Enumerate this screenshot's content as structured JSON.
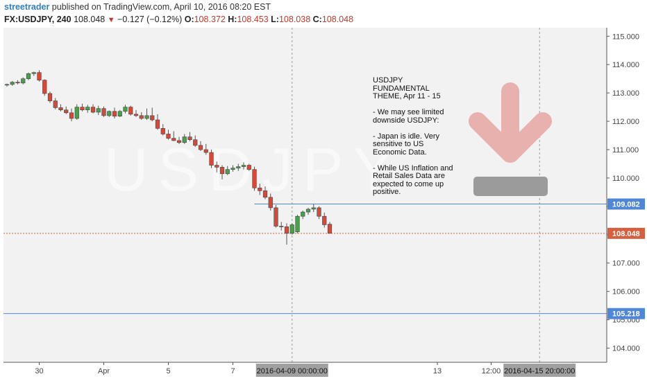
{
  "header": {
    "user": "streetrader",
    "publish_text": " published on TradingView.com, April 10, 2016 08:20 EST",
    "symbol": "FX:USDJPY, 240",
    "last": "108.048",
    "change": "−0.127 (−0.12%)",
    "o_label": "O:",
    "o_value": "108.372",
    "h_label": "H:",
    "h_value": "108.453",
    "l_label": "L:",
    "l_value": "108.038",
    "c_label": "C:",
    "c_value": "108.048"
  },
  "annotation": "USDJPY\nFUNDAMENTAL\nTHEME, Apr 11 - 15\n\n- We may see limited\ndownside USDJPY:\n\n- Japan is idle. Very\nsensitive to US\nEconomic Data.\n\n- While US Inflation and\nRetail Sales Data are\nexpected to come up\npositive.",
  "watermark": "USDJPY",
  "icons": {
    "arrow": "down-arrow-icon",
    "bar": "minus-bar-icon"
  },
  "colors": {
    "up": "#4a9e4e",
    "down": "#d44a3a",
    "hline": "#4f86d6",
    "price_tag": "#d5603f",
    "arrow": "#e8b1ad",
    "bar": "#9b9b9b"
  },
  "chart_data": {
    "type": "candlestick",
    "symbol": "FX:USDJPY",
    "timeframe": "240",
    "ylim": [
      103.5,
      115.3
    ],
    "y_ticks": [
      "115.000",
      "114.000",
      "113.000",
      "112.000",
      "111.000",
      "110.000",
      "109.000",
      "108.000",
      "107.000",
      "106.000",
      "105.000",
      "104.000"
    ],
    "x_ticks": [
      {
        "label": "30",
        "index": 6
      },
      {
        "label": "Apr",
        "index": 18
      },
      {
        "label": "5",
        "index": 30
      },
      {
        "label": "7",
        "index": 42
      },
      {
        "label": "13",
        "index": 80
      },
      {
        "label": "12:00",
        "index": 90
      }
    ],
    "x_markers": [
      {
        "label": "2016-04-09 00:00:00",
        "index": 53
      },
      {
        "label": "2016-04-15 20:00:00",
        "index": 99
      }
    ],
    "horizontal_lines": [
      {
        "value": 109.082,
        "label": "109.082",
        "from_index": 46
      },
      {
        "value": 105.218,
        "label": "105.218",
        "from_index": -1
      }
    ],
    "last_price": {
      "value": 108.048,
      "label": "108.048"
    },
    "candles": [
      [
        113.28,
        113.33,
        113.22,
        113.3
      ],
      [
        113.3,
        113.42,
        113.25,
        113.38
      ],
      [
        113.38,
        113.45,
        113.3,
        113.35
      ],
      [
        113.35,
        113.55,
        113.3,
        113.5
      ],
      [
        113.5,
        113.72,
        113.45,
        113.68
      ],
      [
        113.68,
        113.75,
        113.6,
        113.72
      ],
      [
        113.72,
        113.8,
        113.4,
        113.45
      ],
      [
        113.45,
        113.48,
        112.9,
        112.98
      ],
      [
        112.98,
        113.05,
        112.65,
        112.72
      ],
      [
        112.72,
        112.82,
        112.42,
        112.48
      ],
      [
        112.48,
        112.6,
        112.35,
        112.4
      ],
      [
        112.4,
        112.52,
        112.25,
        112.3
      ],
      [
        112.3,
        112.45,
        112.0,
        112.1
      ],
      [
        112.1,
        112.6,
        112.05,
        112.5
      ],
      [
        112.5,
        112.62,
        112.35,
        112.4
      ],
      [
        112.4,
        112.58,
        112.3,
        112.5
      ],
      [
        112.5,
        112.6,
        112.28,
        112.32
      ],
      [
        112.32,
        112.55,
        112.22,
        112.45
      ],
      [
        112.45,
        112.52,
        112.15,
        112.2
      ],
      [
        112.2,
        112.38,
        112.15,
        112.35
      ],
      [
        112.35,
        112.48,
        112.1,
        112.18
      ],
      [
        112.18,
        112.4,
        112.15,
        112.35
      ],
      [
        112.35,
        112.58,
        112.28,
        112.5
      ],
      [
        112.5,
        112.55,
        112.2,
        112.25
      ],
      [
        112.25,
        112.4,
        112.15,
        112.2
      ],
      [
        112.2,
        112.32,
        112.05,
        112.1
      ],
      [
        112.1,
        112.45,
        112.05,
        112.2
      ],
      [
        112.2,
        112.48,
        112.0,
        112.05
      ],
      [
        112.05,
        112.25,
        111.7,
        111.75
      ],
      [
        111.75,
        111.9,
        111.5,
        111.55
      ],
      [
        111.55,
        111.7,
        111.35,
        111.4
      ],
      [
        111.4,
        111.65,
        111.3,
        111.32
      ],
      [
        111.32,
        111.45,
        111.2,
        111.25
      ],
      [
        111.25,
        111.55,
        111.2,
        111.45
      ],
      [
        111.45,
        111.62,
        111.3,
        111.35
      ],
      [
        111.35,
        111.5,
        111.1,
        111.15
      ],
      [
        111.15,
        111.3,
        110.95,
        111.0
      ],
      [
        111.0,
        111.2,
        110.82,
        110.9
      ],
      [
        110.9,
        111.0,
        110.35,
        110.45
      ],
      [
        110.45,
        110.58,
        110.2,
        110.38
      ],
      [
        110.38,
        110.45,
        109.95,
        110.15
      ],
      [
        110.15,
        110.42,
        110.1,
        110.3
      ],
      [
        110.3,
        110.45,
        110.22,
        110.35
      ],
      [
        110.35,
        110.5,
        110.25,
        110.4
      ],
      [
        110.4,
        110.55,
        110.3,
        110.45
      ],
      [
        110.45,
        110.5,
        110.25,
        110.3
      ],
      [
        110.3,
        110.4,
        109.55,
        109.65
      ],
      [
        109.65,
        109.8,
        109.4,
        109.55
      ],
      [
        109.55,
        109.7,
        109.25,
        109.32
      ],
      [
        109.32,
        109.45,
        108.85,
        108.95
      ],
      [
        108.95,
        109.05,
        108.25,
        108.3
      ],
      [
        108.3,
        108.45,
        108.15,
        108.28
      ],
      [
        108.28,
        108.4,
        107.65,
        108.05
      ],
      [
        108.05,
        108.4,
        108.0,
        108.35
      ],
      [
        108.1,
        108.7,
        108.05,
        108.65
      ],
      [
        108.65,
        108.85,
        108.55,
        108.8
      ],
      [
        108.8,
        108.95,
        108.7,
        108.9
      ],
      [
        108.9,
        109.08,
        108.8,
        108.95
      ],
      [
        108.95,
        109.0,
        108.55,
        108.65
      ],
      [
        108.65,
        108.78,
        108.25,
        108.35
      ],
      [
        108.37,
        108.45,
        108.04,
        108.05
      ]
    ]
  }
}
